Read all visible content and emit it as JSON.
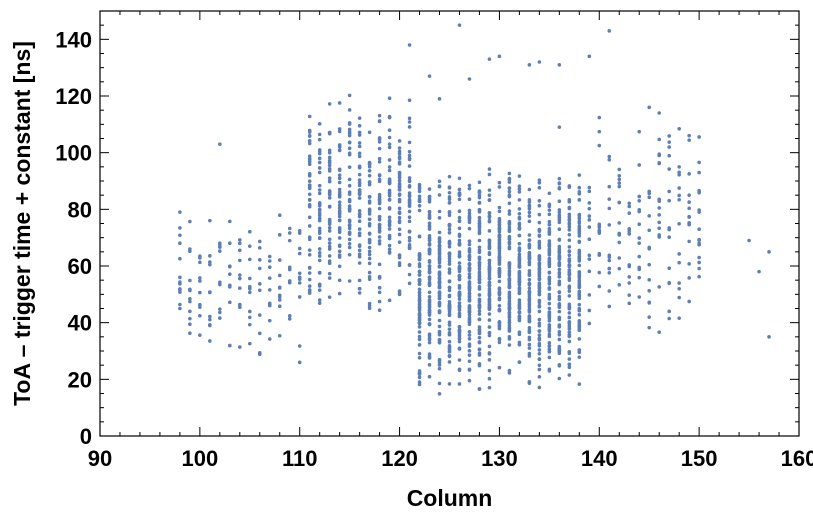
{
  "chart_data": {
    "type": "scatter",
    "title": "",
    "xlabel": "Column",
    "ylabel": "ToA – trigger time + constant [ns]",
    "xlim": [
      90,
      160
    ],
    "ylim": [
      0,
      150
    ],
    "x_ticks": [
      90,
      100,
      110,
      120,
      130,
      140,
      150,
      160
    ],
    "y_ticks": [
      0,
      20,
      40,
      60,
      80,
      100,
      120,
      140
    ],
    "grid": false,
    "legend": "none",
    "marker_color": "#5b7fb8",
    "clusters": [
      {
        "x_range": [
          98,
          110
        ],
        "y_range": [
          22,
          82
        ],
        "points_per_column": 10
      },
      {
        "x_range": [
          111,
          121
        ],
        "y_range": [
          42,
          122
        ],
        "points_per_column": 40
      },
      {
        "x_range": [
          122,
          138
        ],
        "y_range": [
          14,
          96
        ],
        "points_per_column": 75
      },
      {
        "x_range": [
          139,
          150
        ],
        "y_range": [
          34,
          116
        ],
        "points_per_column": 14
      }
    ],
    "outliers": [
      {
        "x": 98,
        "y": 79
      },
      {
        "x": 98,
        "y": 56
      },
      {
        "x": 98,
        "y": 45
      },
      {
        "x": 99,
        "y": 66
      },
      {
        "x": 99,
        "y": 44
      },
      {
        "x": 101,
        "y": 76
      },
      {
        "x": 102,
        "y": 103
      },
      {
        "x": 104,
        "y": 68
      },
      {
        "x": 105,
        "y": 67
      },
      {
        "x": 108,
        "y": 71
      },
      {
        "x": 110,
        "y": 26
      },
      {
        "x": 121,
        "y": 138
      },
      {
        "x": 123,
        "y": 127
      },
      {
        "x": 124,
        "y": 119
      },
      {
        "x": 126,
        "y": 145
      },
      {
        "x": 127,
        "y": 126
      },
      {
        "x": 129,
        "y": 133
      },
      {
        "x": 130,
        "y": 134
      },
      {
        "x": 133,
        "y": 131
      },
      {
        "x": 134,
        "y": 132
      },
      {
        "x": 136,
        "y": 131
      },
      {
        "x": 136,
        "y": 109
      },
      {
        "x": 139,
        "y": 134
      },
      {
        "x": 141,
        "y": 143
      },
      {
        "x": 145,
        "y": 116
      },
      {
        "x": 146,
        "y": 114
      },
      {
        "x": 149,
        "y": 106
      },
      {
        "x": 146,
        "y": 99
      },
      {
        "x": 155,
        "y": 69
      },
      {
        "x": 156,
        "y": 58
      },
      {
        "x": 157,
        "y": 65
      },
      {
        "x": 157,
        "y": 35
      },
      {
        "x": 150,
        "y": 79
      },
      {
        "x": 150,
        "y": 63
      },
      {
        "x": 147,
        "y": 44
      }
    ]
  }
}
